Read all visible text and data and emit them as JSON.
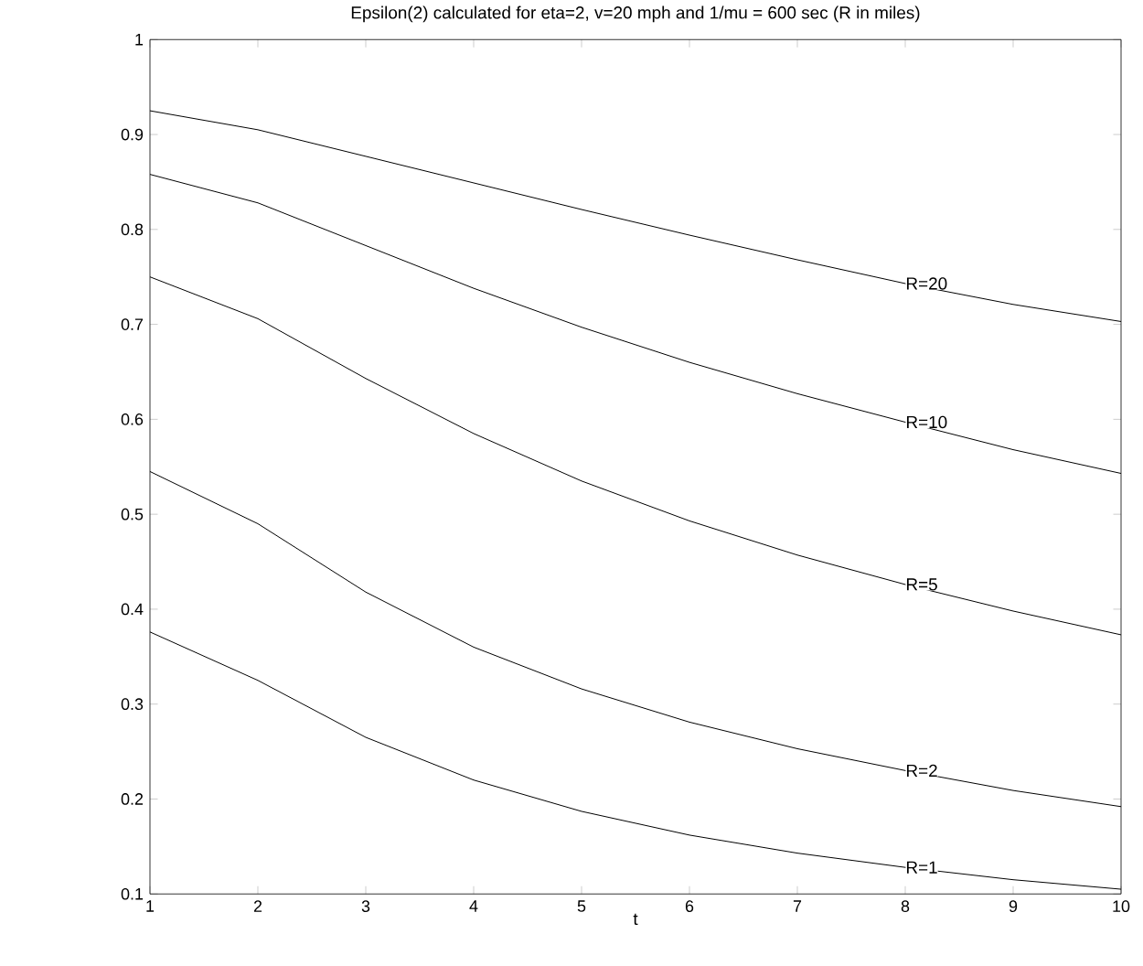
{
  "chart_data": {
    "type": "line",
    "title": "Epsilon(2) calculated for eta=2, v=20 mph and 1/mu = 600 sec (R in miles)",
    "xlabel": "t",
    "x": [
      1,
      2,
      3,
      4,
      5,
      6,
      7,
      8,
      9,
      10
    ],
    "series": [
      {
        "name": "R=20",
        "color": "#000000",
        "values": [
          0.925,
          0.905,
          0.877,
          0.849,
          0.821,
          0.794,
          0.768,
          0.743,
          0.721,
          0.703
        ]
      },
      {
        "name": "R=10",
        "color": "#000000",
        "values": [
          0.858,
          0.828,
          0.783,
          0.738,
          0.697,
          0.66,
          0.627,
          0.597,
          0.568,
          0.543
        ]
      },
      {
        "name": "R=5",
        "color": "#000000",
        "values": [
          0.75,
          0.706,
          0.643,
          0.585,
          0.535,
          0.493,
          0.457,
          0.426,
          0.398,
          0.373
        ]
      },
      {
        "name": "R=2",
        "color": "#000000",
        "values": [
          0.545,
          0.49,
          0.418,
          0.36,
          0.316,
          0.281,
          0.253,
          0.23,
          0.209,
          0.192
        ]
      },
      {
        "name": "R=1",
        "color": "#000000",
        "values": [
          0.376,
          0.325,
          0.265,
          0.22,
          0.187,
          0.162,
          0.143,
          0.128,
          0.115,
          0.105
        ]
      }
    ],
    "xlim": [
      1,
      10
    ],
    "ylim": [
      0.1,
      1
    ],
    "xticks": [
      1,
      2,
      3,
      4,
      5,
      6,
      7,
      8,
      9,
      10
    ],
    "yticks": [
      0.1,
      0.2,
      0.3,
      0.4,
      0.5,
      0.6,
      0.7,
      0.8,
      0.9,
      1
    ],
    "grid": false,
    "line_style": "solid"
  }
}
